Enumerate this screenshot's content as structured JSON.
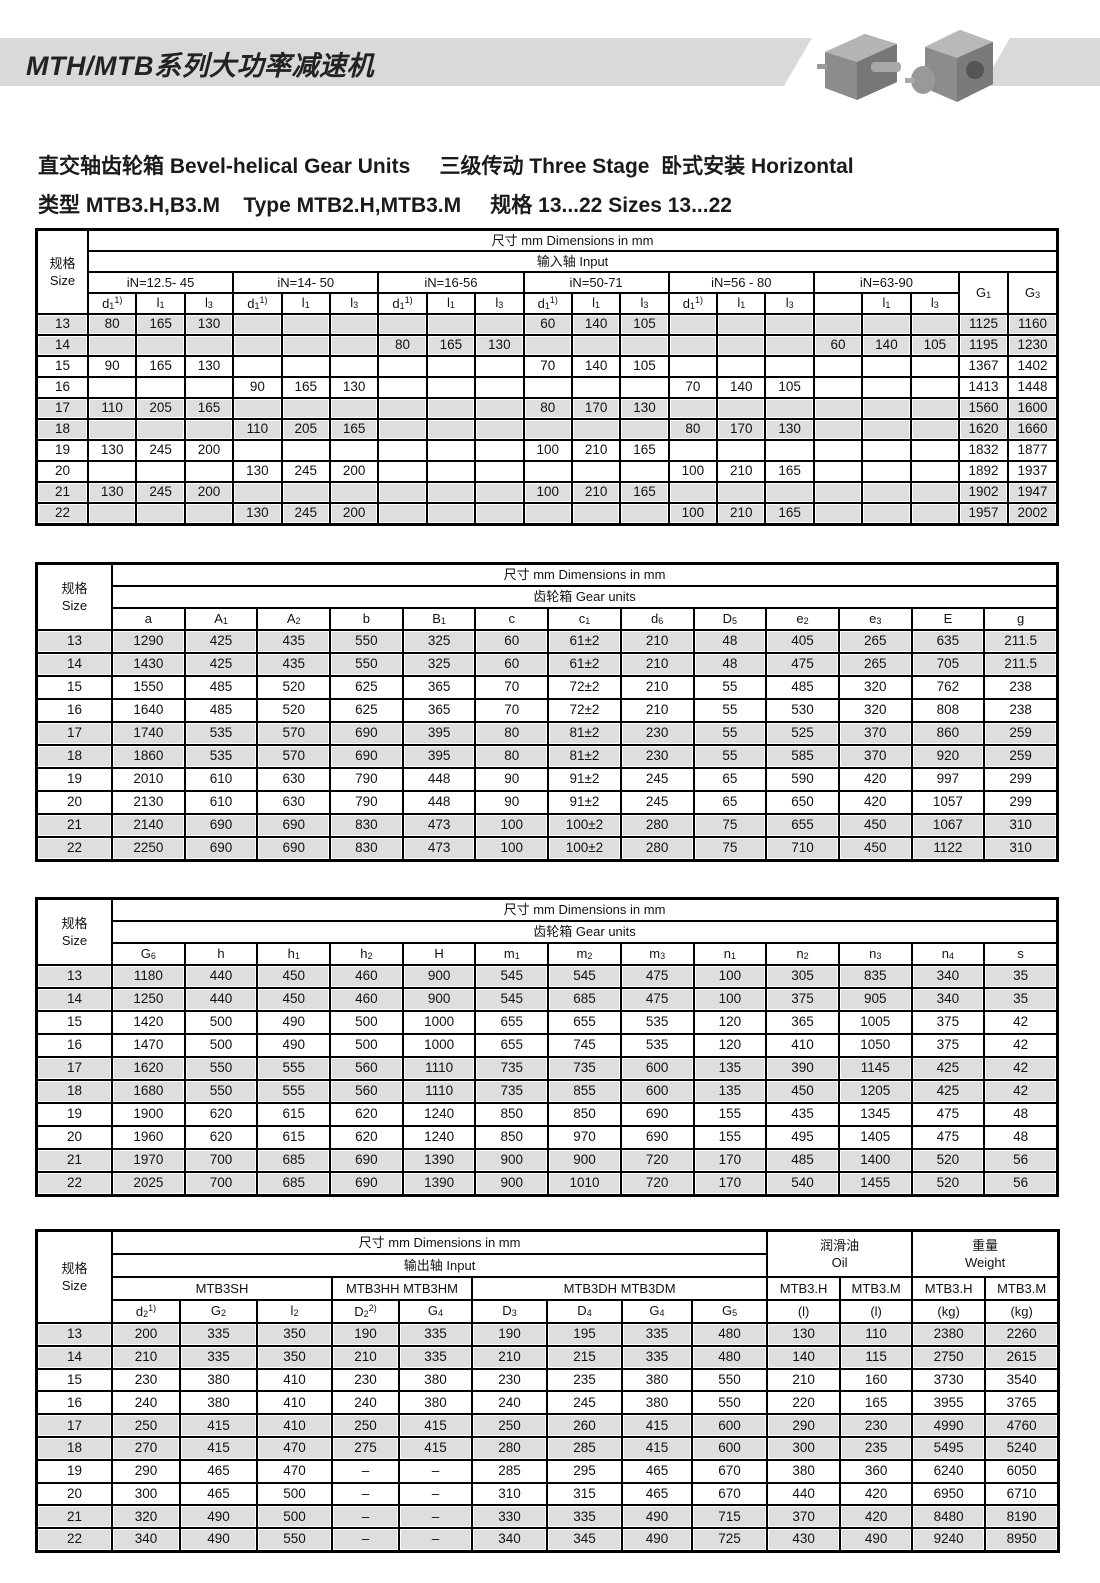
{
  "page": {
    "title": "MTH/MTB系列大功率减速机",
    "subtitle_line1": "直交轴齿轮箱 Bevel-helical Gear Units     三级传动 Three Stage  卧式安装 Horizontal",
    "subtitle_line2": "类型 MTB3.H,B3.M    Type MTB2.H,MTB3.M     规格 13...22 Sizes 13...22",
    "product_images": [
      "gear-unit-hollow-shaft",
      "gear-unit-solid-shaft"
    ],
    "colors": {
      "banner": "#d9d9d9",
      "row_shade": "#dedede",
      "border": "#000000"
    }
  },
  "tables": [
    {
      "header": [
        [
          {
            "lines": [
              "规格",
              "Size"
            ],
            "rs": 4,
            "cls": "size"
          },
          {
            "t": "尺寸 mm  Dimensions in mm",
            "cs": 20
          }
        ],
        [
          {
            "t": "输入轴      Input",
            "cs": 20
          }
        ],
        [
          {
            "t": "iN=12.5- 45",
            "cs": 3
          },
          {
            "t": "iN=14- 50",
            "cs": 3
          },
          {
            "t": "iN=16-56",
            "cs": 3
          },
          {
            "t": "iN=50-71",
            "cs": 3
          },
          {
            "t": "iN=56 - 80",
            "cs": 3
          },
          {
            "t": "iN=63-90",
            "cs": 3
          },
          {
            "t": "G",
            "sub": "1",
            "rs": 2
          },
          {
            "t": "G",
            "sub": "3",
            "rs": 2
          }
        ],
        [
          {
            "t": "d",
            "sub": "1",
            "sup": "1)"
          },
          {
            "t": "l",
            "sub": "1"
          },
          {
            "t": "l",
            "sub": "3"
          },
          {
            "t": "d",
            "sub": "1",
            "sup": "1)"
          },
          {
            "t": "l",
            "sub": "1"
          },
          {
            "t": "l",
            "sub": "3"
          },
          {
            "t": "d",
            "sub": "1",
            "sup": "1)"
          },
          {
            "t": "l",
            "sub": "1"
          },
          {
            "t": "l",
            "sub": "3"
          },
          {
            "t": "d",
            "sub": "1",
            "sup": "1)"
          },
          {
            "t": "l",
            "sub": "1"
          },
          {
            "t": "l",
            "sub": "3"
          },
          {
            "t": "d",
            "sub": "1",
            "sup": "1)"
          },
          {
            "t": "l",
            "sub": "1"
          },
          {
            "t": "l",
            "sub": "3"
          },
          {
            "t": ""
          },
          {
            "t": "l",
            "sub": "1"
          },
          {
            "t": "l",
            "sub": "3"
          }
        ]
      ],
      "rows": [
        [
          "13",
          "80",
          "165",
          "130",
          "",
          "",
          "",
          "",
          "",
          "",
          "60",
          "140",
          "105",
          "",
          "",
          "",
          "",
          "",
          "",
          "1125",
          "1160"
        ],
        [
          "14",
          "",
          "",
          "",
          "",
          "",
          "",
          "80",
          "165",
          "130",
          "",
          "",
          "",
          "",
          "",
          "",
          "60",
          "140",
          "105",
          "1195",
          "1230"
        ],
        [
          "15",
          "90",
          "165",
          "130",
          "",
          "",
          "",
          "",
          "",
          "",
          "70",
          "140",
          "105",
          "",
          "",
          "",
          "",
          "",
          "",
          "1367",
          "1402"
        ],
        [
          "16",
          "",
          "",
          "",
          "90",
          "165",
          "130",
          "",
          "",
          "",
          "",
          "",
          "",
          "70",
          "140",
          "105",
          "",
          "",
          "",
          "1413",
          "1448"
        ],
        [
          "17",
          "110",
          "205",
          "165",
          "",
          "",
          "",
          "",
          "",
          "",
          "80",
          "170",
          "130",
          "",
          "",
          "",
          "",
          "",
          "",
          "1560",
          "1600"
        ],
        [
          "18",
          "",
          "",
          "",
          "110",
          "205",
          "165",
          "",
          "",
          "",
          "",
          "",
          "",
          "80",
          "170",
          "130",
          "",
          "",
          "",
          "1620",
          "1660"
        ],
        [
          "19",
          "130",
          "245",
          "200",
          "",
          "",
          "",
          "",
          "",
          "",
          "100",
          "210",
          "165",
          "",
          "",
          "",
          "",
          "",
          "",
          "1832",
          "1877"
        ],
        [
          "20",
          "",
          "",
          "",
          "130",
          "245",
          "200",
          "",
          "",
          "",
          "",
          "",
          "",
          "100",
          "210",
          "165",
          "",
          "",
          "",
          "1892",
          "1937"
        ],
        [
          "21",
          "130",
          "245",
          "200",
          "",
          "",
          "",
          "",
          "",
          "",
          "100",
          "210",
          "165",
          "",
          "",
          "",
          "",
          "",
          "",
          "1902",
          "1947"
        ],
        [
          "22",
          "",
          "",
          "",
          "130",
          "245",
          "200",
          "",
          "",
          "",
          "",
          "",
          "",
          "100",
          "210",
          "165",
          "",
          "",
          "",
          "1957",
          "2002"
        ]
      ]
    },
    {
      "header": [
        [
          {
            "lines": [
              "规格",
              "Size"
            ],
            "rs": 3,
            "cls": "size"
          },
          {
            "t": "尺寸 mm  Dimensions in mm",
            "cs": 13
          }
        ],
        [
          {
            "t": "齿轮箱        Gear units",
            "cs": 13
          }
        ],
        [
          {
            "t": "a"
          },
          {
            "t": "A",
            "sub": "1"
          },
          {
            "t": "A",
            "sub": "2"
          },
          {
            "t": "b"
          },
          {
            "t": "B",
            "sub": "1"
          },
          {
            "t": "c"
          },
          {
            "t": "c",
            "sub": "1"
          },
          {
            "t": "d",
            "sub": "6"
          },
          {
            "t": "D",
            "sub": "5"
          },
          {
            "t": "e",
            "sub": "2"
          },
          {
            "t": "e",
            "sub": "3"
          },
          {
            "t": "E"
          },
          {
            "t": "g"
          }
        ]
      ],
      "rows": [
        [
          "13",
          "1290",
          "425",
          "435",
          "550",
          "325",
          "60",
          "61±2",
          "210",
          "48",
          "405",
          "265",
          "635",
          "211.5"
        ],
        [
          "14",
          "1430",
          "425",
          "435",
          "550",
          "325",
          "60",
          "61±2",
          "210",
          "48",
          "475",
          "265",
          "705",
          "211.5"
        ],
        [
          "15",
          "1550",
          "485",
          "520",
          "625",
          "365",
          "70",
          "72±2",
          "210",
          "55",
          "485",
          "320",
          "762",
          "238"
        ],
        [
          "16",
          "1640",
          "485",
          "520",
          "625",
          "365",
          "70",
          "72±2",
          "210",
          "55",
          "530",
          "320",
          "808",
          "238"
        ],
        [
          "17",
          "1740",
          "535",
          "570",
          "690",
          "395",
          "80",
          "81±2",
          "230",
          "55",
          "525",
          "370",
          "860",
          "259"
        ],
        [
          "18",
          "1860",
          "535",
          "570",
          "690",
          "395",
          "80",
          "81±2",
          "230",
          "55",
          "585",
          "370",
          "920",
          "259"
        ],
        [
          "19",
          "2010",
          "610",
          "630",
          "790",
          "448",
          "90",
          "91±2",
          "245",
          "65",
          "590",
          "420",
          "997",
          "299"
        ],
        [
          "20",
          "2130",
          "610",
          "630",
          "790",
          "448",
          "90",
          "91±2",
          "245",
          "65",
          "650",
          "420",
          "1057",
          "299"
        ],
        [
          "21",
          "2140",
          "690",
          "690",
          "830",
          "473",
          "100",
          "100±2",
          "280",
          "75",
          "655",
          "450",
          "1067",
          "310"
        ],
        [
          "22",
          "2250",
          "690",
          "690",
          "830",
          "473",
          "100",
          "100±2",
          "280",
          "75",
          "710",
          "450",
          "1122",
          "310"
        ]
      ]
    },
    {
      "header": [
        [
          {
            "lines": [
              "规格",
              "Size"
            ],
            "rs": 3,
            "cls": "size"
          },
          {
            "t": "尺寸 mm  Dimensions in mm",
            "cs": 13
          }
        ],
        [
          {
            "t": "齿轮箱        Gear units",
            "cs": 13
          }
        ],
        [
          {
            "t": "G",
            "sub": "6"
          },
          {
            "t": "h"
          },
          {
            "t": "h",
            "sub": "1"
          },
          {
            "t": "h",
            "sub": "2"
          },
          {
            "t": "H"
          },
          {
            "t": "m",
            "sub": "1"
          },
          {
            "t": "m",
            "sub": "2"
          },
          {
            "t": "m",
            "sub": "3"
          },
          {
            "t": "n",
            "sub": "1"
          },
          {
            "t": "n",
            "sub": "2"
          },
          {
            "t": "n",
            "sub": "3"
          },
          {
            "t": "n",
            "sub": "4"
          },
          {
            "t": "s"
          }
        ]
      ],
      "rows": [
        [
          "13",
          "1180",
          "440",
          "450",
          "460",
          "900",
          "545",
          "545",
          "475",
          "100",
          "305",
          "835",
          "340",
          "35"
        ],
        [
          "14",
          "1250",
          "440",
          "450",
          "460",
          "900",
          "545",
          "685",
          "475",
          "100",
          "375",
          "905",
          "340",
          "35"
        ],
        [
          "15",
          "1420",
          "500",
          "490",
          "500",
          "1000",
          "655",
          "655",
          "535",
          "120",
          "365",
          "1005",
          "375",
          "42"
        ],
        [
          "16",
          "1470",
          "500",
          "490",
          "500",
          "1000",
          "655",
          "745",
          "535",
          "120",
          "410",
          "1050",
          "375",
          "42"
        ],
        [
          "17",
          "1620",
          "550",
          "555",
          "560",
          "1110",
          "735",
          "735",
          "600",
          "135",
          "390",
          "1145",
          "425",
          "42"
        ],
        [
          "18",
          "1680",
          "550",
          "555",
          "560",
          "1110",
          "735",
          "855",
          "600",
          "135",
          "450",
          "1205",
          "425",
          "42"
        ],
        [
          "19",
          "1900",
          "620",
          "615",
          "620",
          "1240",
          "850",
          "850",
          "690",
          "155",
          "435",
          "1345",
          "475",
          "48"
        ],
        [
          "20",
          "1960",
          "620",
          "615",
          "620",
          "1240",
          "850",
          "970",
          "690",
          "155",
          "495",
          "1405",
          "475",
          "48"
        ],
        [
          "21",
          "1970",
          "700",
          "685",
          "690",
          "1390",
          "900",
          "900",
          "720",
          "170",
          "485",
          "1400",
          "520",
          "56"
        ],
        [
          "22",
          "2025",
          "700",
          "685",
          "690",
          "1390",
          "900",
          "1010",
          "720",
          "170",
          "540",
          "1455",
          "520",
          "56"
        ]
      ]
    },
    {
      "header": [
        [
          {
            "lines": [
              "规格",
              "Size"
            ],
            "rs": 4,
            "cls": "size"
          },
          {
            "t": "尺寸 mm  Dimensions in mm",
            "cs": 9
          },
          {
            "lines": [
              "润滑油",
              "Oil"
            ],
            "cs": 2,
            "rs": 2
          },
          {
            "lines": [
              "重量",
              "Weight"
            ],
            "cs": 2,
            "rs": 2
          }
        ],
        [
          {
            "t": "输出轴      Input",
            "cs": 9
          }
        ],
        [
          {
            "t": "MTB3SH",
            "cs": 3
          },
          {
            "t": "MTB3HH  MTB3HM",
            "cs": 2
          },
          {
            "t": "MTB3DH   MTB3DM",
            "cs": 4
          },
          {
            "t": "MTB3.H"
          },
          {
            "t": "MTB3.M"
          },
          {
            "t": "MTB3.H"
          },
          {
            "t": "MTB3.M"
          }
        ],
        [
          {
            "t": "d",
            "sub": "2",
            "sup": "1)"
          },
          {
            "t": "G",
            "sub": "2"
          },
          {
            "t": "l",
            "sub": "2"
          },
          {
            "t": "D",
            "sub": "2",
            "sup": "2)"
          },
          {
            "t": "G",
            "sub": "4"
          },
          {
            "t": "D",
            "sub": "3"
          },
          {
            "t": "D",
            "sub": "4"
          },
          {
            "t": "G",
            "sub": "4"
          },
          {
            "t": "G",
            "sub": "5"
          },
          {
            "t": "(l)"
          },
          {
            "t": "(l)"
          },
          {
            "t": "(kg)"
          },
          {
            "t": "(kg)"
          }
        ]
      ],
      "rows": [
        [
          "13",
          "200",
          "335",
          "350",
          "190",
          "335",
          "190",
          "195",
          "335",
          "480",
          "130",
          "110",
          "2380",
          "2260"
        ],
        [
          "14",
          "210",
          "335",
          "350",
          "210",
          "335",
          "210",
          "215",
          "335",
          "480",
          "140",
          "115",
          "2750",
          "2615"
        ],
        [
          "15",
          "230",
          "380",
          "410",
          "230",
          "380",
          "230",
          "235",
          "380",
          "550",
          "210",
          "160",
          "3730",
          "3540"
        ],
        [
          "16",
          "240",
          "380",
          "410",
          "240",
          "380",
          "240",
          "245",
          "380",
          "550",
          "220",
          "165",
          "3955",
          "3765"
        ],
        [
          "17",
          "250",
          "415",
          "410",
          "250",
          "415",
          "250",
          "260",
          "415",
          "600",
          "290",
          "230",
          "4990",
          "4760"
        ],
        [
          "18",
          "270",
          "415",
          "470",
          "275",
          "415",
          "280",
          "285",
          "415",
          "600",
          "300",
          "235",
          "5495",
          "5240"
        ],
        [
          "19",
          "290",
          "465",
          "470",
          "–",
          "–",
          "285",
          "295",
          "465",
          "670",
          "380",
          "360",
          "6240",
          "6050"
        ],
        [
          "20",
          "300",
          "465",
          "500",
          "–",
          "–",
          "310",
          "315",
          "465",
          "670",
          "440",
          "420",
          "6950",
          "6710"
        ],
        [
          "21",
          "320",
          "490",
          "500",
          "–",
          "–",
          "330",
          "335",
          "490",
          "715",
          "370",
          "420",
          "8480",
          "8190"
        ],
        [
          "22",
          "340",
          "490",
          "550",
          "–",
          "–",
          "340",
          "345",
          "490",
          "725",
          "430",
          "490",
          "9240",
          "8950"
        ]
      ]
    }
  ]
}
